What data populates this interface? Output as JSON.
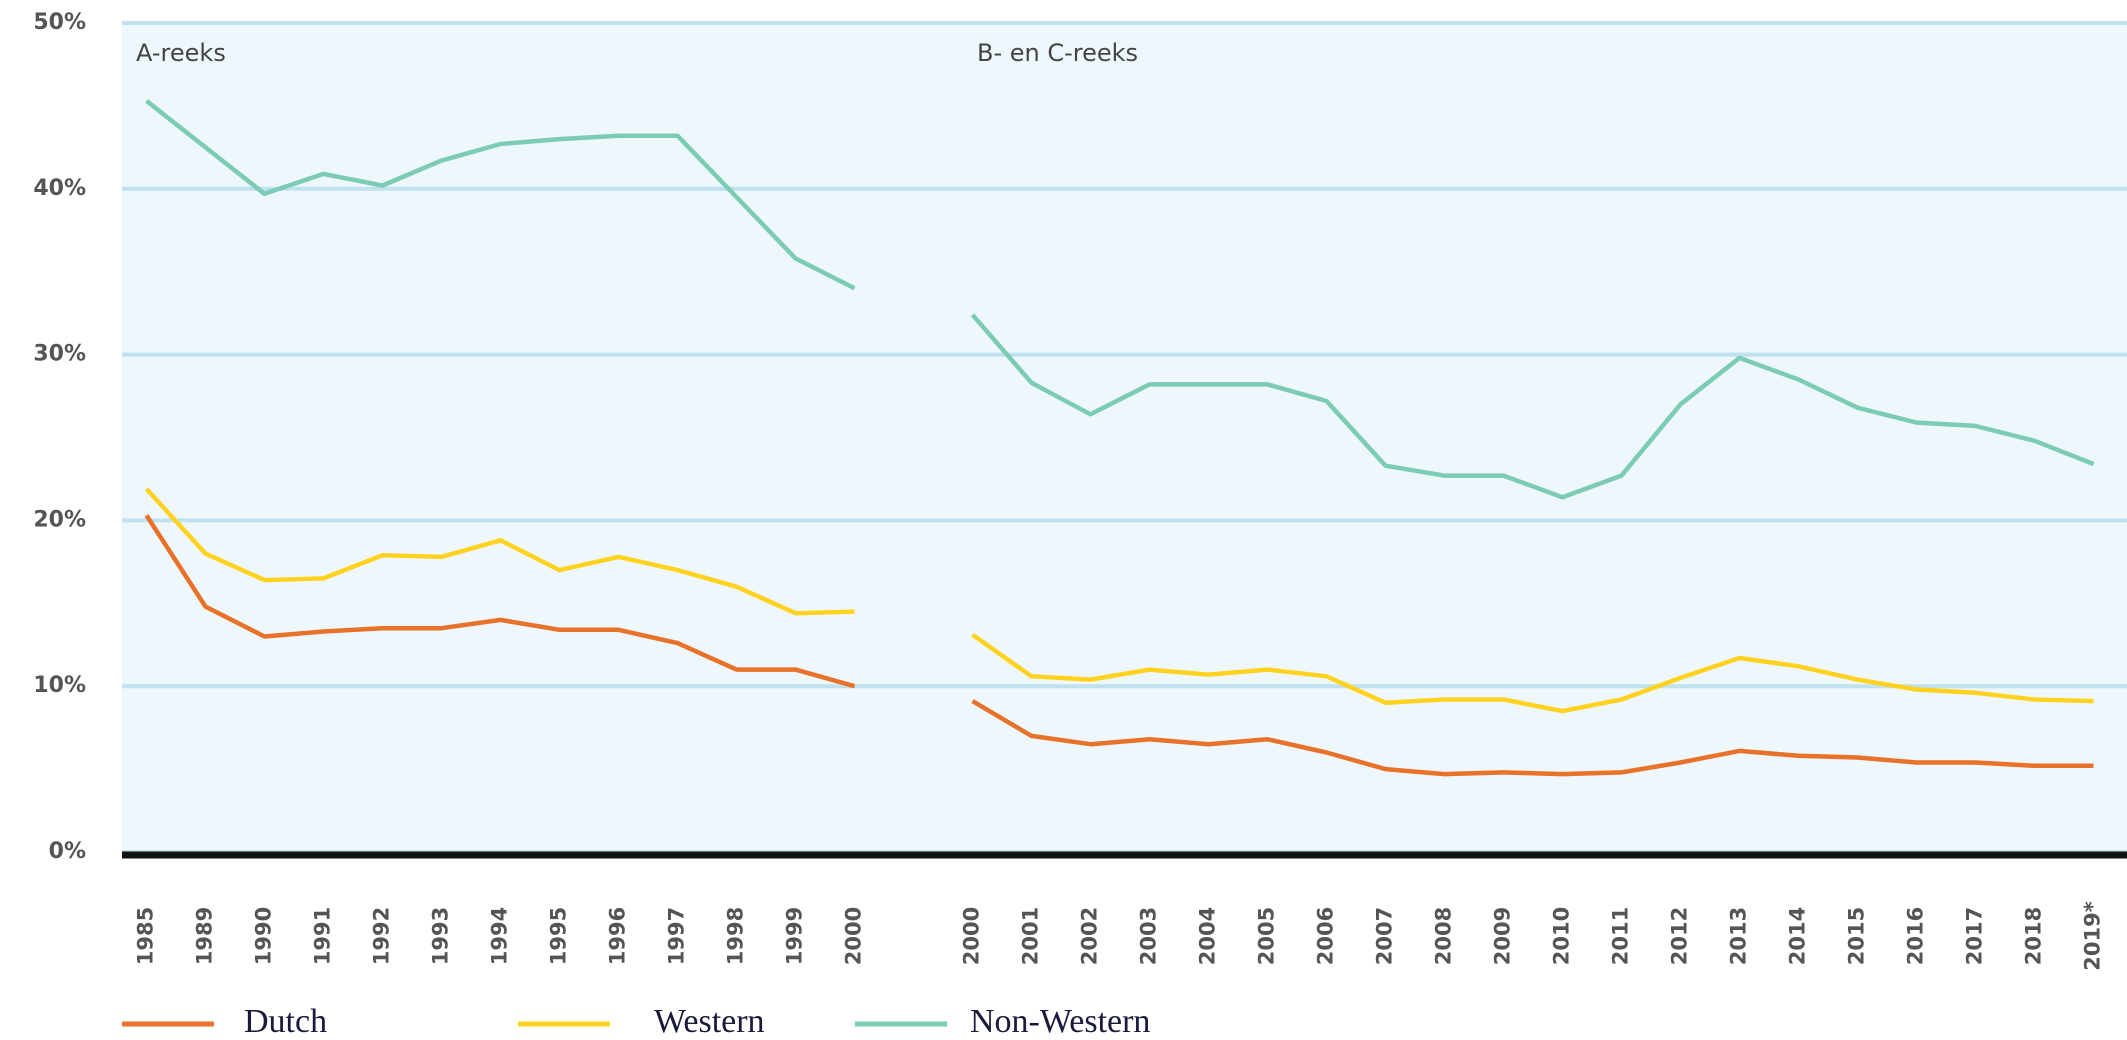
{
  "chart_data": {
    "type": "line",
    "annotations": [
      "A-reeks",
      "B- en C-reeks"
    ],
    "categories": [
      "1985",
      "1989",
      "1990",
      "1991",
      "1992",
      "1993",
      "1994",
      "1995",
      "1996",
      "1997",
      "1998",
      "1999",
      "2000",
      null,
      "2000",
      "2001",
      "2002",
      "2003",
      "2004",
      "2005",
      "2006",
      "2007",
      "2008",
      "2009",
      "2010",
      "2011",
      "2012",
      "2013",
      "2014",
      "2015",
      "2016",
      "2017",
      "2018",
      "2019*"
    ],
    "series": [
      {
        "name": "Dutch",
        "color": "#e8722a",
        "values": [
          20.3,
          14.8,
          13.0,
          13.3,
          13.5,
          13.5,
          14.0,
          13.4,
          13.4,
          12.6,
          11.0,
          11.0,
          10.0,
          null,
          9.1,
          7.0,
          6.5,
          6.8,
          6.5,
          6.8,
          6.0,
          5.0,
          4.7,
          4.8,
          4.7,
          4.8,
          5.4,
          6.1,
          5.8,
          5.7,
          5.4,
          5.4,
          5.2,
          5.2
        ]
      },
      {
        "name": "Western",
        "color": "#ffd21f",
        "values": [
          21.9,
          18.0,
          16.4,
          16.5,
          17.9,
          17.8,
          18.8,
          17.0,
          17.8,
          17.0,
          16.0,
          14.4,
          14.5,
          null,
          13.1,
          10.6,
          10.4,
          11.0,
          10.7,
          11.0,
          10.6,
          9.0,
          9.2,
          9.2,
          8.5,
          9.2,
          10.5,
          11.7,
          11.2,
          10.4,
          9.8,
          9.6,
          9.2,
          9.1
        ]
      },
      {
        "name": "Non-Western",
        "color": "#7ccbb5",
        "values": [
          45.3,
          42.5,
          39.7,
          40.9,
          40.2,
          41.7,
          42.7,
          43.0,
          43.2,
          43.2,
          39.5,
          35.8,
          34.0,
          null,
          32.4,
          28.3,
          26.4,
          28.2,
          28.2,
          28.2,
          27.2,
          23.3,
          22.7,
          22.7,
          21.4,
          22.7,
          27.0,
          29.8,
          28.5,
          26.8,
          25.9,
          25.7,
          24.8,
          23.4
        ]
      }
    ],
    "ylim": [
      0,
      50
    ],
    "yticks": [
      {
        "value": 0,
        "label": "0%"
      },
      {
        "value": 10,
        "label": "10%"
      },
      {
        "value": 20,
        "label": "20%"
      },
      {
        "value": 30,
        "label": "30%"
      },
      {
        "value": 40,
        "label": "40%"
      },
      {
        "value": 50,
        "label": "50%"
      }
    ],
    "grid": true
  }
}
